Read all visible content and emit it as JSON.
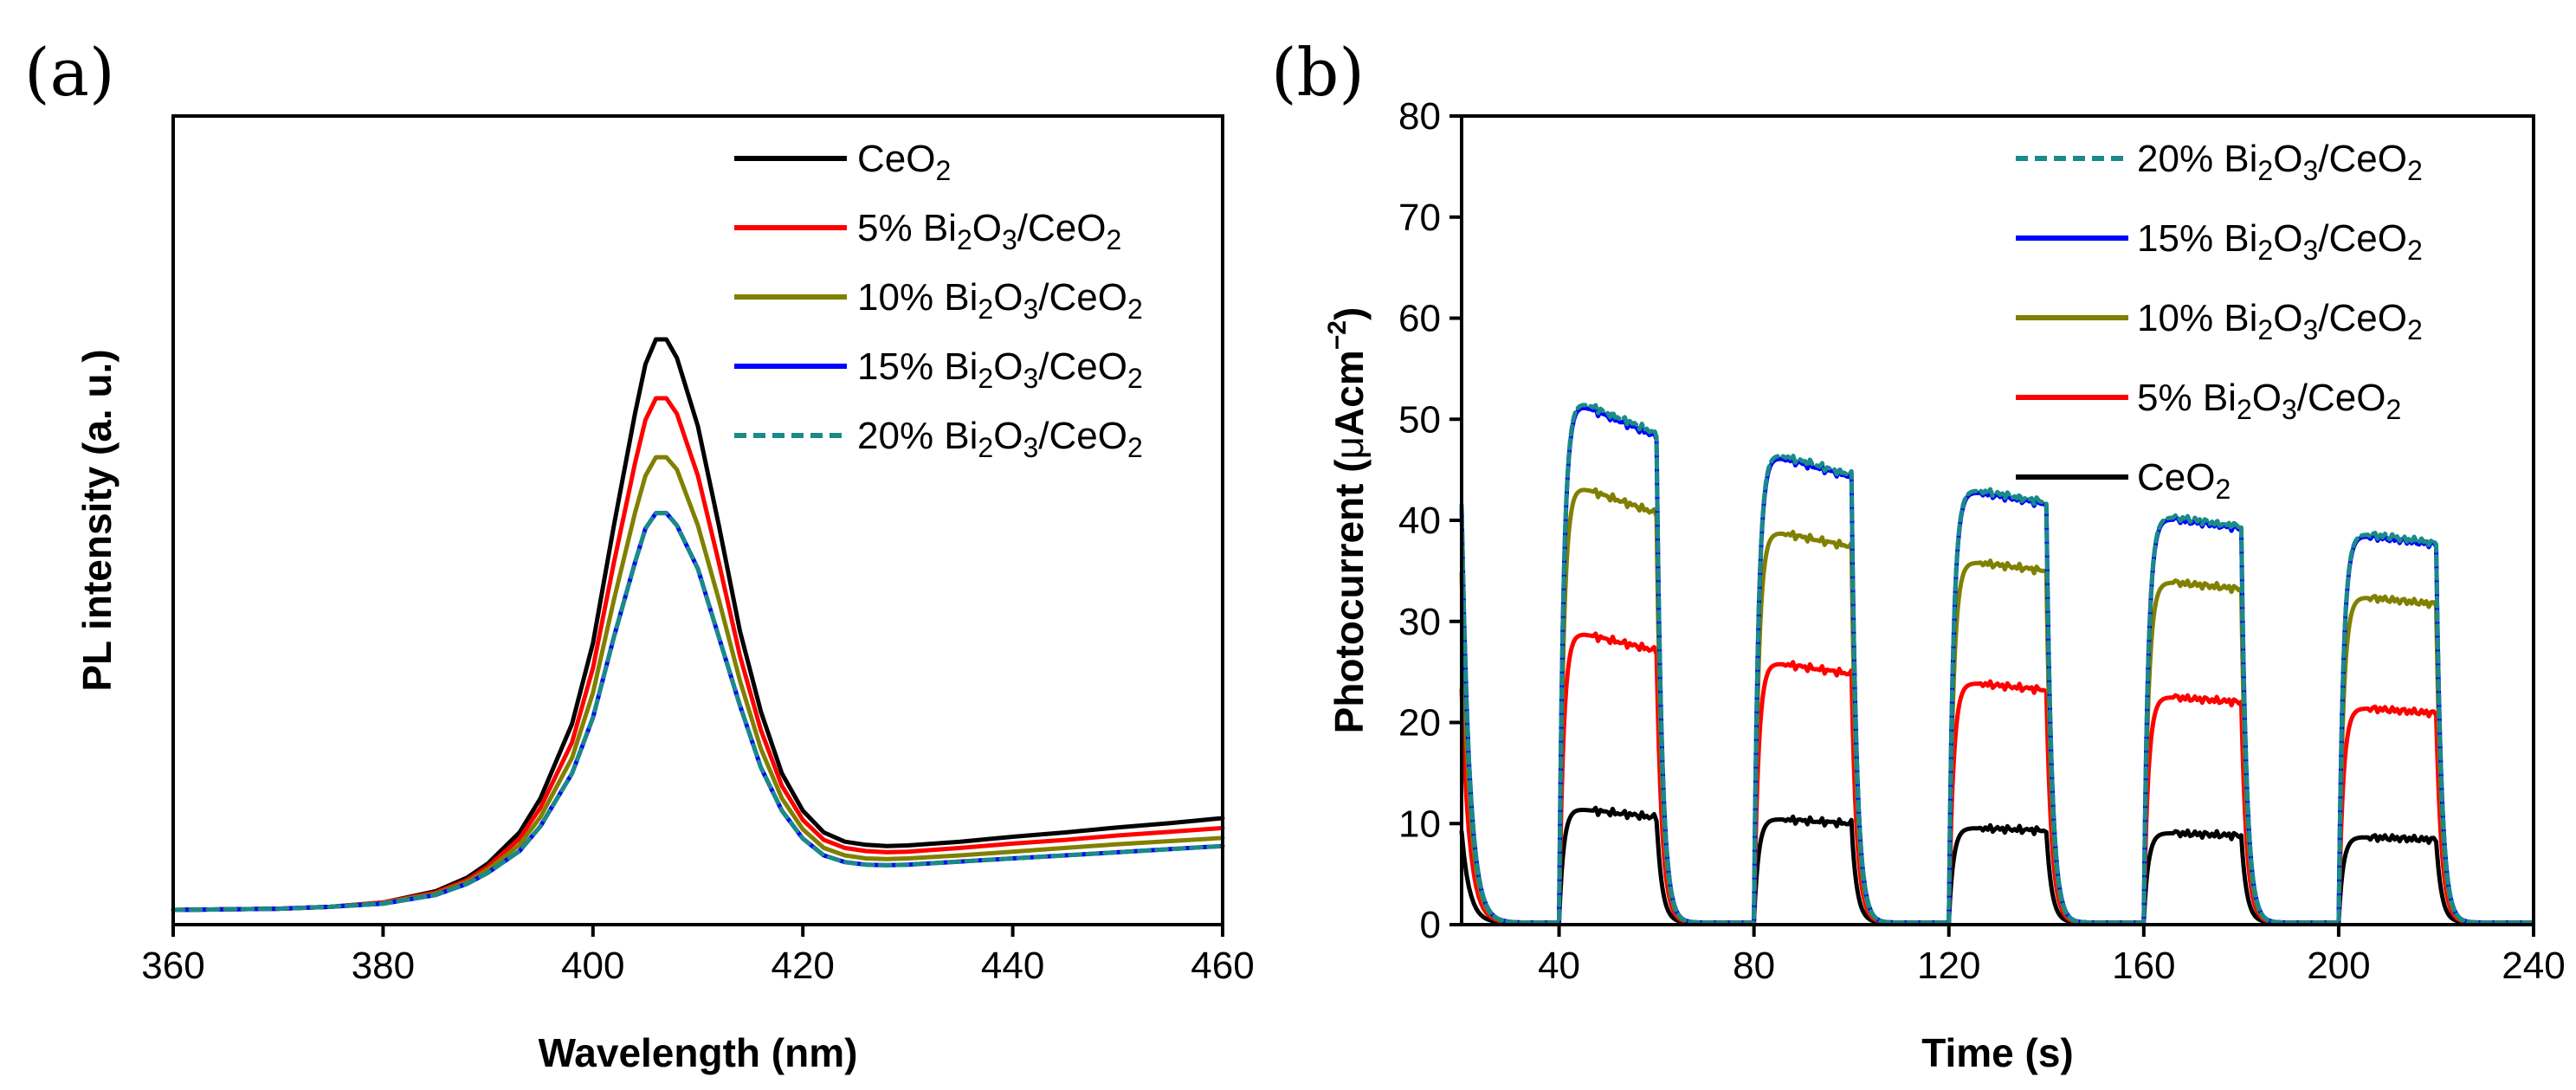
{
  "chart_data": [
    {
      "panel": "(a)",
      "type": "line",
      "title": "",
      "xlabel": "Wavelength (nm)",
      "ylabel": "PL intensity (a. u.)",
      "xlim": [
        360,
        460
      ],
      "ylim": [
        0,
        1.1
      ],
      "xticks": [
        360,
        380,
        400,
        420,
        440,
        460
      ],
      "yticks_shown": false,
      "legend_location": "top-right",
      "series": [
        {
          "name": "CeO2",
          "legend_main": "CeO",
          "legend_sub": "2",
          "legend_tail": "",
          "color": "#000000",
          "dashed": false,
          "x": [
            360,
            370,
            375,
            380,
            385,
            388,
            390,
            393,
            395,
            398,
            400,
            402,
            404,
            405,
            406,
            407,
            408,
            410,
            412,
            414,
            416,
            418,
            420,
            422,
            424,
            426,
            428,
            430,
            435,
            440,
            445,
            450,
            455,
            460
          ],
          "y": [
            0.0,
            0.002,
            0.005,
            0.012,
            0.03,
            0.052,
            0.075,
            0.125,
            0.18,
            0.3,
            0.43,
            0.62,
            0.8,
            0.88,
            0.92,
            0.92,
            0.89,
            0.78,
            0.62,
            0.45,
            0.32,
            0.22,
            0.16,
            0.125,
            0.11,
            0.105,
            0.103,
            0.104,
            0.11,
            0.118,
            0.125,
            0.133,
            0.14,
            0.148
          ]
        },
        {
          "name": "5% Bi2O3/CeO2",
          "legend_main": "5% Bi",
          "legend_sub": "2",
          "legend_tail": "O|3|/CeO|2",
          "color": "#ff0000",
          "dashed": false,
          "x": [
            360,
            370,
            375,
            380,
            385,
            388,
            390,
            393,
            395,
            398,
            400,
            402,
            404,
            405,
            406,
            407,
            408,
            410,
            412,
            414,
            416,
            418,
            420,
            422,
            424,
            426,
            428,
            430,
            435,
            440,
            445,
            450,
            455,
            460
          ],
          "y": [
            0.0,
            0.002,
            0.005,
            0.012,
            0.028,
            0.048,
            0.07,
            0.115,
            0.165,
            0.27,
            0.39,
            0.56,
            0.72,
            0.79,
            0.825,
            0.825,
            0.8,
            0.7,
            0.56,
            0.41,
            0.29,
            0.2,
            0.145,
            0.113,
            0.1,
            0.095,
            0.093,
            0.094,
            0.1,
            0.107,
            0.113,
            0.12,
            0.126,
            0.132
          ]
        },
        {
          "name": "10% Bi2O3/CeO2",
          "legend_main": "10% Bi",
          "legend_sub": "2",
          "legend_tail": "O|3|/CeO|2",
          "color": "#808000",
          "dashed": false,
          "x": [
            360,
            370,
            375,
            380,
            385,
            388,
            390,
            393,
            395,
            398,
            400,
            402,
            404,
            405,
            406,
            407,
            408,
            410,
            412,
            414,
            416,
            418,
            420,
            422,
            424,
            426,
            428,
            430,
            435,
            440,
            445,
            450,
            455,
            460
          ],
          "y": [
            0.0,
            0.002,
            0.005,
            0.011,
            0.026,
            0.045,
            0.065,
            0.105,
            0.15,
            0.245,
            0.35,
            0.5,
            0.64,
            0.7,
            0.73,
            0.73,
            0.71,
            0.62,
            0.5,
            0.37,
            0.26,
            0.18,
            0.13,
            0.1,
            0.088,
            0.083,
            0.082,
            0.083,
            0.088,
            0.094,
            0.1,
            0.106,
            0.111,
            0.116
          ]
        },
        {
          "name": "15% Bi2O3/CeO2",
          "legend_main": "15% Bi",
          "legend_sub": "2",
          "legend_tail": "O|3|/CeO|2",
          "color": "#0000ff",
          "dashed": false,
          "x": [
            360,
            370,
            375,
            380,
            385,
            388,
            390,
            393,
            395,
            398,
            400,
            402,
            404,
            405,
            406,
            407,
            408,
            410,
            412,
            414,
            416,
            418,
            420,
            422,
            424,
            426,
            428,
            430,
            435,
            440,
            445,
            450,
            455,
            460
          ],
          "y": [
            0.0,
            0.002,
            0.005,
            0.01,
            0.024,
            0.042,
            0.06,
            0.095,
            0.135,
            0.22,
            0.31,
            0.44,
            0.56,
            0.615,
            0.64,
            0.64,
            0.62,
            0.55,
            0.44,
            0.33,
            0.23,
            0.16,
            0.115,
            0.088,
            0.077,
            0.073,
            0.072,
            0.073,
            0.078,
            0.083,
            0.088,
            0.093,
            0.098,
            0.103
          ]
        },
        {
          "name": "20% Bi2O3/CeO2",
          "legend_main": "20% Bi",
          "legend_sub": "2",
          "legend_tail": "O|3|/CeO|2",
          "color": "#1a8a8a",
          "dashed": true,
          "x": [
            360,
            370,
            375,
            380,
            385,
            388,
            390,
            393,
            395,
            398,
            400,
            402,
            404,
            405,
            406,
            407,
            408,
            410,
            412,
            414,
            416,
            418,
            420,
            422,
            424,
            426,
            428,
            430,
            435,
            440,
            445,
            450,
            455,
            460
          ],
          "y": [
            0.0,
            0.002,
            0.005,
            0.01,
            0.024,
            0.042,
            0.06,
            0.095,
            0.135,
            0.22,
            0.31,
            0.44,
            0.56,
            0.615,
            0.64,
            0.64,
            0.62,
            0.55,
            0.44,
            0.33,
            0.23,
            0.16,
            0.115,
            0.088,
            0.077,
            0.073,
            0.072,
            0.073,
            0.078,
            0.083,
            0.088,
            0.093,
            0.098,
            0.103
          ]
        }
      ]
    },
    {
      "panel": "(b)",
      "type": "line",
      "title": "",
      "xlabel": "Time (s)",
      "ylabel_main": "Photocurrent (",
      "ylabel_mu": "μ",
      "ylabel_unit": "Acm",
      "ylabel_sup": "−2",
      "ylabel_close": ")",
      "xlim": [
        20,
        240
      ],
      "ylim": [
        0,
        80
      ],
      "xticks": [
        40,
        80,
        120,
        160,
        200,
        240
      ],
      "yticks": [
        0,
        10,
        20,
        30,
        40,
        50,
        60,
        70,
        80
      ],
      "legend_location": "top-right",
      "on_intervals": [
        [
          40,
          60
        ],
        [
          80,
          100
        ],
        [
          120,
          140
        ],
        [
          160,
          180
        ],
        [
          200,
          220
        ]
      ],
      "series": [
        {
          "name": "20% Bi2O3/CeO2",
          "legend_main": "20% Bi",
          "legend_sub": "2",
          "legend_tail": "O|3|/CeO|2",
          "color": "#1a8a8a",
          "dashed": true,
          "on_start": [
            52,
            46.8,
            43.2,
            40.5,
            38.8
          ],
          "on_end": [
            48.6,
            44.5,
            41.8,
            39.4,
            37.8
          ]
        },
        {
          "name": "15% Bi2O3/CeO2",
          "legend_main": "15% Bi",
          "legend_sub": "2",
          "legend_tail": "O|3|/CeO|2",
          "color": "#0000ff",
          "dashed": false,
          "on_start": [
            51.7,
            46.5,
            43.0,
            40.3,
            38.6
          ],
          "on_end": [
            48.3,
            44.3,
            41.6,
            39.2,
            37.6
          ]
        },
        {
          "name": "10% Bi2O3/CeO2",
          "legend_main": "10% Bi",
          "legend_sub": "2",
          "legend_tail": "O|3|/CeO|2",
          "color": "#808000",
          "dashed": false,
          "on_start": [
            43.5,
            39.0,
            36.0,
            34.0,
            32.5
          ],
          "on_end": [
            40.7,
            37.4,
            35.0,
            33.2,
            31.7
          ]
        },
        {
          "name": "5% Bi2O3/CeO2",
          "legend_main": " 5% Bi",
          "legend_sub": "2",
          "legend_tail": "O|3|/CeO|2",
          "color": "#ff0000",
          "dashed": false,
          "on_start": [
            29.0,
            26.0,
            24.0,
            22.6,
            21.5
          ],
          "on_end": [
            27.1,
            24.8,
            23.2,
            22.0,
            20.9
          ]
        },
        {
          "name": "CeO2",
          "legend_main": "CeO",
          "legend_sub": "2",
          "legend_tail": "",
          "color": "#000000",
          "dashed": false,
          "on_start": [
            11.5,
            10.5,
            9.6,
            9.1,
            8.7
          ],
          "on_end": [
            10.6,
            10.0,
            9.3,
            8.8,
            8.4
          ]
        }
      ]
    }
  ]
}
